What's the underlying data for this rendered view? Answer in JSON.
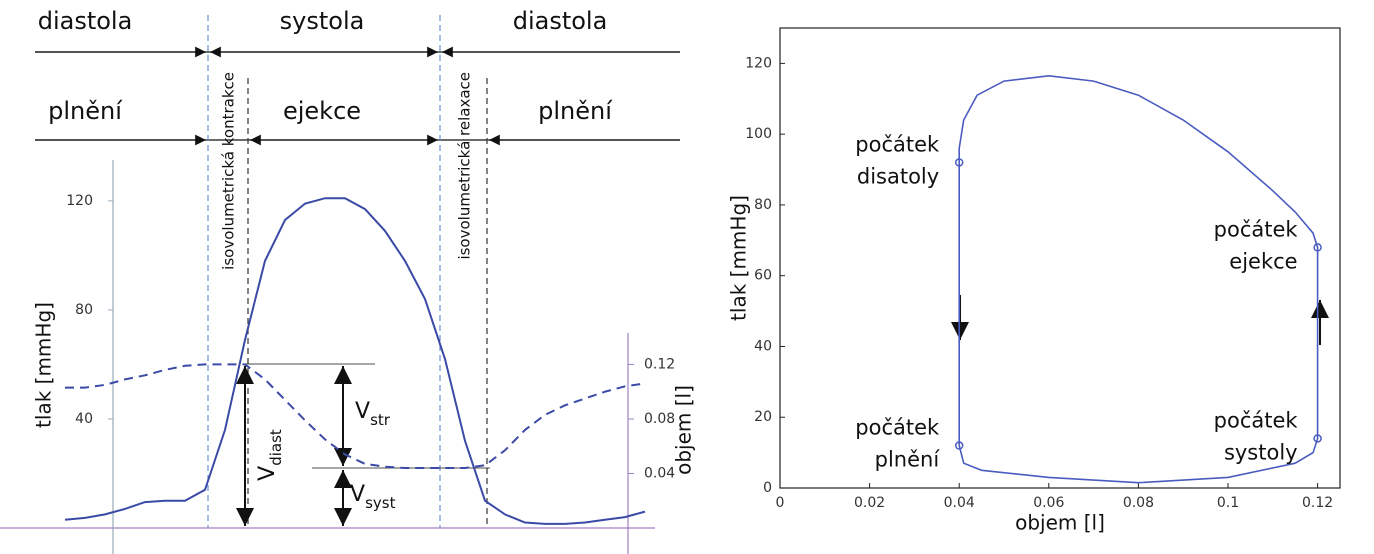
{
  "chart_data": [
    {
      "type": "line",
      "categories": [
        null,
        null,
        null,
        null,
        null,
        null,
        null,
        null,
        null,
        null,
        null,
        null,
        null,
        null,
        null,
        null,
        null,
        null,
        null,
        null,
        null,
        null,
        null,
        null,
        null,
        null,
        null,
        null,
        null,
        null
      ],
      "series": [
        {
          "color": "#3a4aa6",
          "line_style": "solid",
          "values": [
            3,
            3.7,
            5,
            7,
            9.5,
            10,
            10,
            14,
            36,
            69,
            98,
            113,
            119,
            121,
            121,
            117,
            109,
            98,
            84,
            62,
            32,
            10,
            5,
            2,
            1.5,
            1.5,
            2,
            3,
            4,
            6
          ]
        },
        {
          "color": "#3a4aa6",
          "line_style": "dashed",
          "axis": "y2",
          "values": [
            0.103,
            0.103,
            0.105,
            0.109,
            0.112,
            0.116,
            0.119,
            0.12,
            0.12,
            0.12,
            0.109,
            0.094,
            0.079,
            0.065,
            0.054,
            0.047,
            0.045,
            0.044,
            0.044,
            0.044,
            0.044,
            0.046,
            0.057,
            0.072,
            0.083,
            0.09,
            0.095,
            0.1,
            0.104,
            0.106
          ]
        }
      ],
      "ylim": [
        0,
        135
      ],
      "yticks": [
        40,
        80,
        120
      ],
      "y2lim": [
        0,
        0.27
      ],
      "y2ticks": [
        0.04,
        0.08,
        0.12
      ],
      "ylabel": "tlak [mmHg]",
      "y2label": "objem [l]",
      "phases": [
        "diastola",
        "systola",
        "diastola"
      ],
      "subphases": [
        "plnění",
        "ejekce",
        "plnění"
      ],
      "isovolumetric": [
        "isovolumetrická kontrakce",
        "isovolumetrická relaxace"
      ],
      "volume_labels": [
        {
          "text": "V",
          "sub": "str"
        },
        {
          "text": "V",
          "sub": "diast"
        },
        {
          "text": "V",
          "sub": "syst"
        }
      ]
    },
    {
      "type": "line",
      "series": [
        {
          "color": "#4a5cc0",
          "x": [
            0.04,
            0.041,
            0.045,
            0.06,
            0.08,
            0.1,
            0.115,
            0.119,
            0.12,
            0.12,
            0.119,
            0.115,
            0.11,
            0.1,
            0.09,
            0.08,
            0.07,
            0.06,
            0.05,
            0.044,
            0.041,
            0.04,
            0.04,
            0.04
          ],
          "values": [
            12,
            7,
            5,
            3,
            1.5,
            3,
            7,
            10,
            14,
            68,
            72,
            78,
            84,
            95,
            104,
            111,
            115,
            116.5,
            115,
            111,
            104,
            96,
            92,
            12
          ]
        }
      ],
      "markers": {
        "color": "#4a5cc0",
        "x": [
          0.04,
          0.12,
          0.12,
          0.04
        ],
        "values": [
          12,
          14,
          68,
          92
        ],
        "labels": [
          [
            "počátek",
            "plnění"
          ],
          [
            "počátek",
            "systoly"
          ],
          [
            "počátek",
            "ejekce"
          ],
          [
            "počátek",
            "disatoly"
          ]
        ]
      },
      "xlim": [
        0,
        0.125
      ],
      "ylim": [
        0,
        130
      ],
      "xticks": [
        0,
        0.02,
        0.04,
        0.06,
        0.08,
        0.1,
        0.12
      ],
      "yticks": [
        0,
        20,
        40,
        60,
        80,
        100,
        120
      ],
      "xlabel": "objem [l]",
      "ylabel": "tlak [mmHg]"
    }
  ]
}
